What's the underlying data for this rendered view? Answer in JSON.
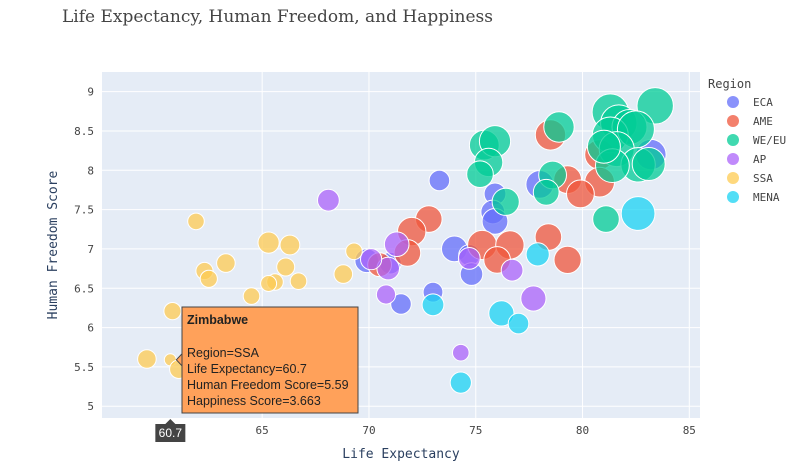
{
  "chart_data": {
    "type": "scatter",
    "title": "Life Expectancy, Human Freedom, and Happiness",
    "xlabel": "Life Expectancy",
    "ylabel": "Human Freedom Score",
    "xlim": [
      57.5,
      85.5
    ],
    "ylim": [
      4.85,
      9.25
    ],
    "x_ticks": [
      65,
      70,
      75,
      80,
      85
    ],
    "y_ticks": [
      5,
      5.5,
      6,
      6.5,
      7,
      7.5,
      8,
      8.5,
      9
    ],
    "grid": true,
    "size_encodes": "Happiness Score",
    "legend": {
      "title": "Region",
      "placement": "right"
    },
    "series": [
      {
        "name": "ECA",
        "color": "#636efa",
        "points": [
          [
            73.3,
            7.87,
            5.1
          ],
          [
            75.9,
            7.7,
            5.3
          ],
          [
            75.8,
            7.47,
            5.6
          ],
          [
            75.9,
            7.35,
            5.9
          ],
          [
            74.0,
            7.0,
            5.9
          ],
          [
            74.7,
            6.92,
            5.2
          ],
          [
            74.8,
            6.68,
            5.4
          ],
          [
            73.0,
            6.45,
            5.0
          ],
          [
            71.5,
            6.3,
            5.1
          ],
          [
            71.0,
            6.82,
            5.3
          ],
          [
            78.0,
            7.82,
            6.2
          ],
          [
            68.0,
            5.77,
            5.4
          ],
          [
            69.9,
            6.85,
            5.6
          ],
          [
            83.2,
            8.2,
            6.6
          ]
        ]
      },
      {
        "name": "AME",
        "color": "#ef553b",
        "points": [
          [
            78.5,
            8.45,
            6.6
          ],
          [
            80.8,
            8.2,
            6.5
          ],
          [
            79.3,
            7.88,
            6.2
          ],
          [
            80.8,
            7.85,
            6.5
          ],
          [
            79.9,
            7.7,
            6.2
          ],
          [
            72.8,
            7.38,
            6.0
          ],
          [
            72.0,
            7.22,
            6.3
          ],
          [
            75.3,
            7.05,
            6.4
          ],
          [
            76.6,
            7.05,
            6.3
          ],
          [
            78.4,
            7.15,
            6.0
          ],
          [
            79.3,
            6.86,
            6.1
          ],
          [
            76.0,
            6.86,
            6.0
          ],
          [
            71.8,
            6.95,
            6.0
          ],
          [
            70.5,
            6.8,
            5.6
          ]
        ]
      },
      {
        "name": "WE/EU",
        "color": "#00cc96",
        "points": [
          [
            83.4,
            8.82,
            7.5
          ],
          [
            81.3,
            8.74,
            7.5
          ],
          [
            81.7,
            8.6,
            7.5
          ],
          [
            82.2,
            8.55,
            7.3
          ],
          [
            81.3,
            8.45,
            7.4
          ],
          [
            82.5,
            8.52,
            7.6
          ],
          [
            81.6,
            8.27,
            7.3
          ],
          [
            82.6,
            8.07,
            7.2
          ],
          [
            81.4,
            8.06,
            7.1
          ],
          [
            83.1,
            8.08,
            7.0
          ],
          [
            81.0,
            8.3,
            7.0
          ],
          [
            78.9,
            8.55,
            6.6
          ],
          [
            75.4,
            8.32,
            6.5
          ],
          [
            75.9,
            8.37,
            6.7
          ],
          [
            75.6,
            8.1,
            6.3
          ],
          [
            75.2,
            7.95,
            6.0
          ],
          [
            78.6,
            7.94,
            6.2
          ],
          [
            78.3,
            7.72,
            5.9
          ],
          [
            76.4,
            7.6,
            6.1
          ],
          [
            81.1,
            7.38,
            6.0
          ]
        ]
      },
      {
        "name": "AP",
        "color": "#ab63fa",
        "points": [
          [
            68.1,
            7.62,
            5.3
          ],
          [
            71.3,
            7.06,
            5.7
          ],
          [
            70.9,
            6.75,
            5.4
          ],
          [
            70.1,
            6.87,
            5.2
          ],
          [
            74.7,
            6.88,
            5.3
          ],
          [
            76.7,
            6.73,
            5.3
          ],
          [
            70.8,
            6.42,
            4.9
          ],
          [
            77.7,
            6.37,
            5.8
          ],
          [
            74.3,
            5.68,
            4.5
          ]
        ]
      },
      {
        "name": "SSA",
        "color": "#fecb52",
        "points": [
          [
            61.9,
            7.35,
            4.5
          ],
          [
            65.3,
            7.08,
            5.2
          ],
          [
            66.3,
            7.05,
            5.0
          ],
          [
            69.3,
            6.97,
            4.5
          ],
          [
            62.3,
            6.72,
            4.6
          ],
          [
            63.3,
            6.82,
            4.8
          ],
          [
            62.5,
            6.62,
            4.6
          ],
          [
            66.1,
            6.77,
            4.7
          ],
          [
            65.6,
            6.58,
            4.5
          ],
          [
            65.3,
            6.56,
            4.4
          ],
          [
            66.7,
            6.59,
            4.5
          ],
          [
            68.8,
            6.68,
            4.8
          ],
          [
            64.5,
            6.4,
            4.5
          ],
          [
            60.8,
            6.21,
            4.6
          ],
          [
            59.6,
            5.6,
            4.8
          ],
          [
            60.7,
            5.59,
            3.663
          ],
          [
            61.1,
            5.47,
            4.8
          ]
        ]
      },
      {
        "name": "MENA",
        "color": "#19d3f3",
        "points": [
          [
            82.6,
            7.45,
            7.1
          ],
          [
            77.9,
            6.93,
            5.5
          ],
          [
            76.2,
            6.18,
            5.8
          ],
          [
            77.0,
            6.05,
            5.1
          ],
          [
            73.0,
            6.29,
            5.3
          ],
          [
            74.3,
            5.3,
            5.2
          ]
        ]
      }
    ]
  },
  "hover": {
    "title": "Zimbabwe",
    "lines": [
      "Region=SSA",
      "Life Expectancy=60.7",
      "Human Freedom Score=5.59",
      "Happiness Score=3.663"
    ],
    "x": 60.7,
    "y": 5.59,
    "x_label": "60.7",
    "bg_color": "#ffa15a"
  }
}
